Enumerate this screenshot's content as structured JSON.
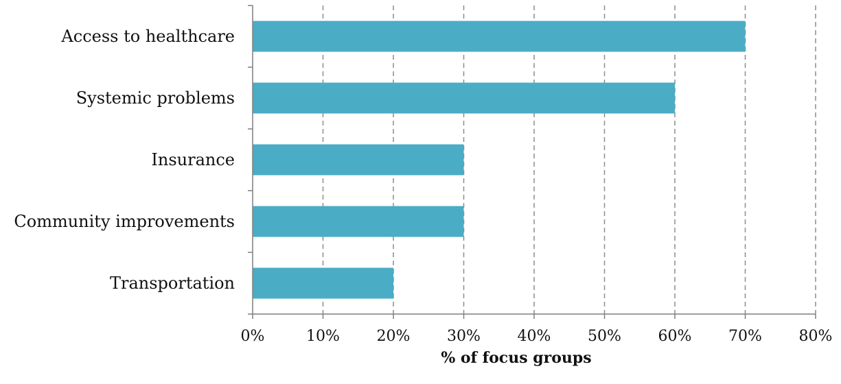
{
  "chart_data": {
    "type": "bar",
    "orientation": "horizontal",
    "categories": [
      "Access to healthcare",
      "Systemic problems",
      "Insurance",
      "Community improvements",
      "Transportation"
    ],
    "values": [
      70,
      60,
      30,
      30,
      20
    ],
    "xlabel": "% of focus groups",
    "ylabel": "",
    "xlim": [
      0,
      80
    ],
    "x_ticks": [
      0,
      10,
      20,
      30,
      40,
      50,
      60,
      70,
      80
    ],
    "x_tick_labels": [
      "0%",
      "10%",
      "20%",
      "30%",
      "40%",
      "50%",
      "60%",
      "70%",
      "80%"
    ],
    "grid": "vertical dashed",
    "colors": {
      "bar": "#4BACC6",
      "grid": "#8c8c8c",
      "axis": "#7f7f7f"
    }
  }
}
